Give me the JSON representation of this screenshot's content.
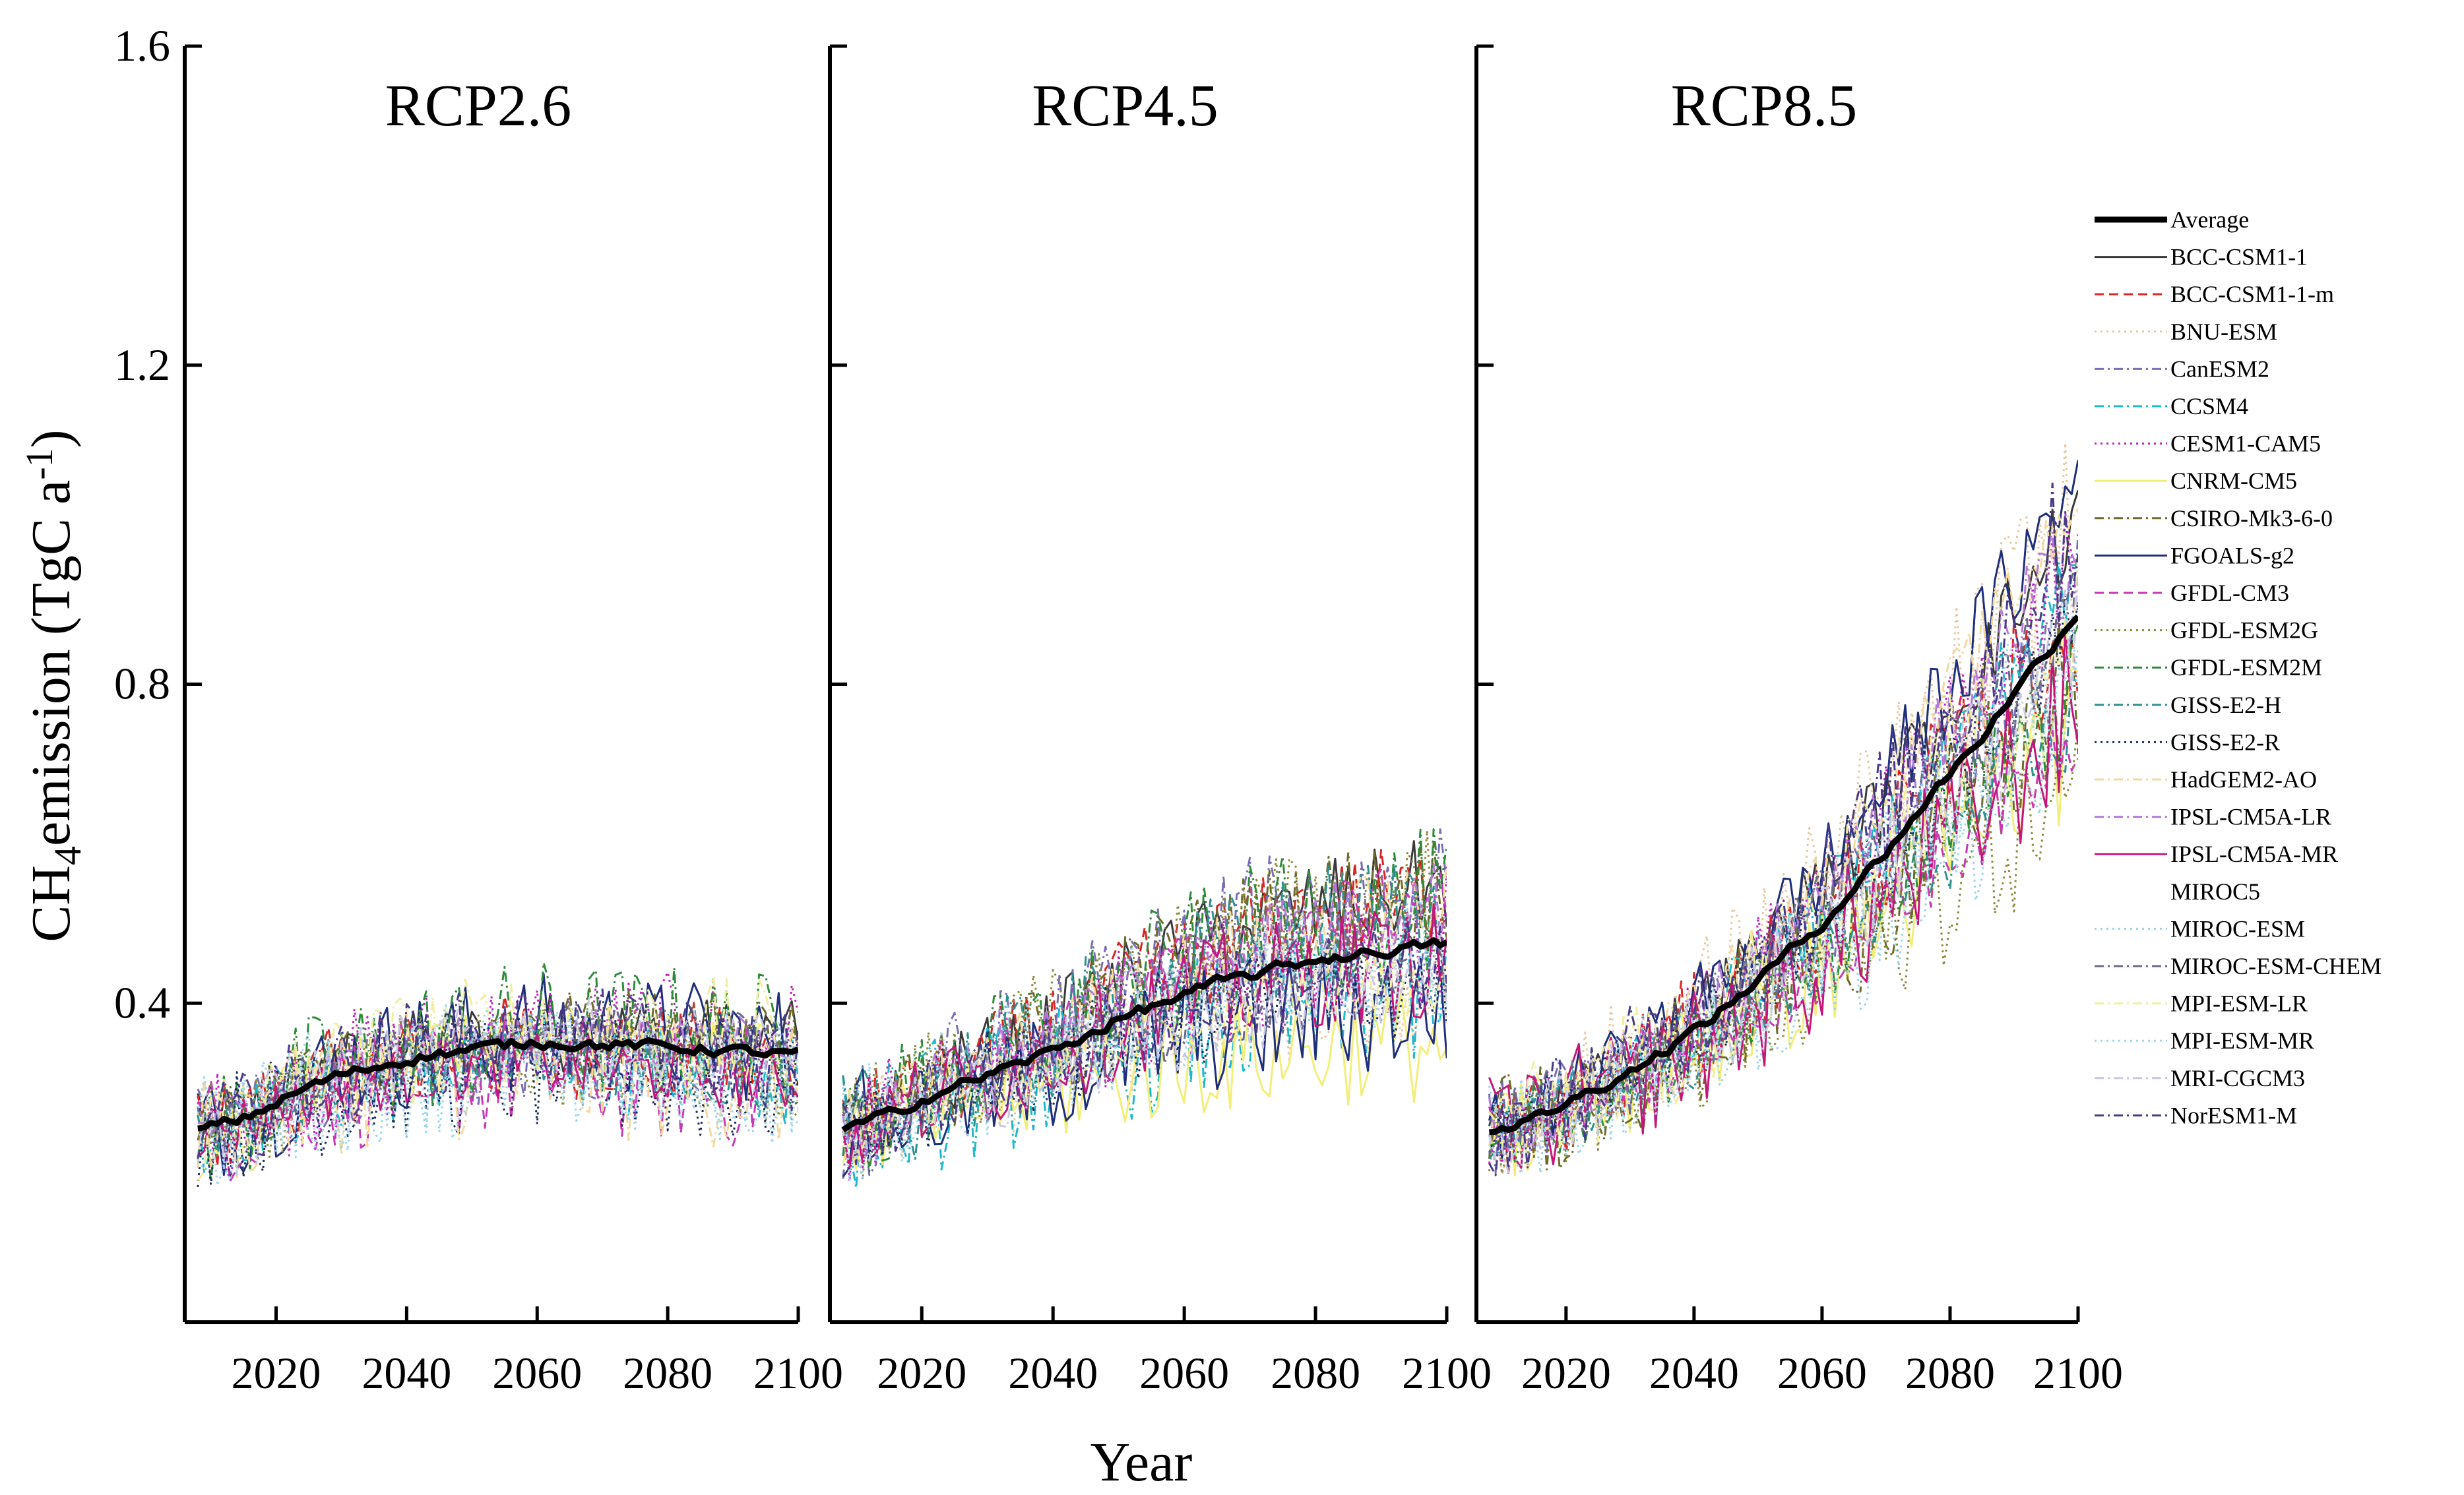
{
  "chart_data": {
    "type": "line",
    "ylabel_parts": {
      "pre": "CH",
      "sub": "4",
      "mid": "emission (TgC a",
      "sup": "-1",
      "post": ")"
    },
    "xlabel": "Year",
    "ylim": [
      0.0,
      1.6
    ],
    "yticks": [
      0.4,
      0.8,
      1.2,
      1.6
    ],
    "ytick_labels": [
      "0.4",
      "0.8",
      "1.2",
      "1.6"
    ],
    "xlim": [
      2006,
      2100
    ],
    "xticks": [
      2020,
      2040,
      2060,
      2080,
      2100
    ],
    "xtick_labels": [
      "2020",
      "2040",
      "2060",
      "2080",
      "2100"
    ],
    "panels": [
      {
        "title": "RCP2.6",
        "average": {
          "x": [
            2008,
            2015,
            2020,
            2025,
            2030,
            2035,
            2040,
            2045,
            2050,
            2055,
            2060,
            2065,
            2070,
            2075,
            2080,
            2085,
            2090,
            2095,
            2100
          ],
          "y": [
            0.24,
            0.255,
            0.275,
            0.295,
            0.31,
            0.32,
            0.33,
            0.337,
            0.342,
            0.347,
            0.352,
            0.35,
            0.348,
            0.347,
            0.345,
            0.343,
            0.34,
            0.337,
            0.335
          ]
        }
      },
      {
        "title": "RCP4.5",
        "average": {
          "x": [
            2008,
            2015,
            2020,
            2025,
            2030,
            2035,
            2040,
            2045,
            2050,
            2055,
            2060,
            2065,
            2070,
            2075,
            2080,
            2085,
            2090,
            2095,
            2100
          ],
          "y": [
            0.24,
            0.26,
            0.28,
            0.295,
            0.31,
            0.325,
            0.34,
            0.36,
            0.38,
            0.395,
            0.41,
            0.425,
            0.435,
            0.445,
            0.455,
            0.46,
            0.465,
            0.47,
            0.475
          ]
        }
      },
      {
        "title": "RCP8.5",
        "average": {
          "x": [
            2008,
            2015,
            2020,
            2025,
            2030,
            2035,
            2040,
            2045,
            2050,
            2055,
            2060,
            2065,
            2070,
            2075,
            2080,
            2085,
            2090,
            2095,
            2100
          ],
          "y": [
            0.24,
            0.255,
            0.275,
            0.295,
            0.315,
            0.34,
            0.365,
            0.395,
            0.43,
            0.465,
            0.5,
            0.545,
            0.59,
            0.64,
            0.69,
            0.735,
            0.79,
            0.84,
            0.89
          ]
        }
      }
    ],
    "legend_position": "right",
    "legend": [
      {
        "name": "Average",
        "color": "#000000",
        "dash": "solid",
        "bold": true
      },
      {
        "name": "BCC-CSM1-1",
        "color": "#3a3a3a",
        "dash": "solid"
      },
      {
        "name": "BCC-CSM1-1-m",
        "color": "#d62728",
        "dash": "dashed"
      },
      {
        "name": "BNU-ESM",
        "color": "#e8c7a0",
        "dash": "dotted"
      },
      {
        "name": "CanESM2",
        "color": "#7a6fb5",
        "dash": "dashdot"
      },
      {
        "name": "CCSM4",
        "color": "#1fb8c8",
        "dash": "dashdot"
      },
      {
        "name": "CESM1-CAM5",
        "color": "#c21fc2",
        "dash": "dotted"
      },
      {
        "name": "CNRM-CM5",
        "color": "#f2ee7a",
        "dash": "solid"
      },
      {
        "name": "CSIRO-Mk3-6-0",
        "color": "#6b6b2a",
        "dash": "dashdot"
      },
      {
        "name": "FGOALS-g2",
        "color": "#1f2f7a",
        "dash": "solid"
      },
      {
        "name": "GFDL-CM3",
        "color": "#c83ab4",
        "dash": "dashed"
      },
      {
        "name": "GFDL-ESM2G",
        "color": "#8a8a3a",
        "dash": "dotted"
      },
      {
        "name": "GFDL-ESM2M",
        "color": "#2e8b3a",
        "dash": "dashdot"
      },
      {
        "name": "GISS-E2-H",
        "color": "#2f8f8f",
        "dash": "dashdot"
      },
      {
        "name": "GISS-E2-R",
        "color": "#1a2a5a",
        "dash": "dotted"
      },
      {
        "name": "HadGEM2-AO",
        "color": "#f2d9a0",
        "dash": "dashdot"
      },
      {
        "name": "IPSL-CM5A-LR",
        "color": "#b57ad6",
        "dash": "dashdot"
      },
      {
        "name": "IPSL-CM5A-MR",
        "color": "#c2187a",
        "dash": "solid"
      },
      {
        "name": "MIROC5",
        "color": "#ffffff",
        "dash": "solid"
      },
      {
        "name": "MIROC-ESM",
        "color": "#9ad4e8",
        "dash": "dotted"
      },
      {
        "name": "MIROC-ESM-CHEM",
        "color": "#6a6a8a",
        "dash": "dashdot"
      },
      {
        "name": "MPI-ESM-LR",
        "color": "#f2eea0",
        "dash": "dashdot"
      },
      {
        "name": "MPI-ESM-MR",
        "color": "#a0d8f0",
        "dash": "dotted"
      },
      {
        "name": "MRI-CGCM3",
        "color": "#c8c8e0",
        "dash": "dashdot"
      },
      {
        "name": "NorESM1-M",
        "color": "#4a3a8a",
        "dash": "dashdot"
      }
    ]
  }
}
